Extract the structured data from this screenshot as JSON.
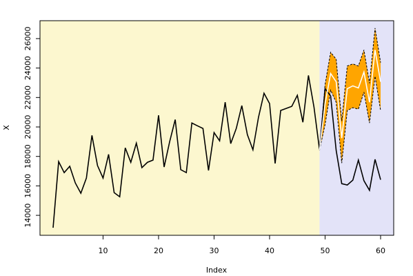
{
  "chart_data": {
    "type": "line",
    "xlabel": "Index",
    "ylabel": "X",
    "xlim": [
      -1.36,
      62.36
    ],
    "ylim": [
      12645,
      27215
    ],
    "xticks": [
      10,
      20,
      30,
      40,
      50,
      60
    ],
    "yticks": [
      14000,
      16000,
      18000,
      20000,
      22000,
      24000,
      26000
    ],
    "split_x": 49,
    "background_colors": [
      "#fcf7cf",
      "#e3e3f8"
    ],
    "series": [
      {
        "color": "#000000",
        "x": [
          1,
          2,
          3,
          4,
          5,
          6,
          7,
          8,
          9,
          10,
          11,
          12,
          13,
          14,
          15,
          16,
          17,
          18,
          19,
          20,
          21,
          22,
          23,
          24,
          25,
          26,
          27,
          28,
          29,
          30,
          31,
          32,
          33,
          34,
          35,
          36,
          37,
          38,
          39,
          40,
          41,
          42,
          43,
          44,
          45,
          46,
          47,
          48,
          49,
          50,
          51,
          52,
          53,
          54,
          55,
          56,
          57,
          58,
          59,
          60
        ],
        "values": [
          13160,
          17650,
          16900,
          17330,
          16200,
          15500,
          16530,
          19430,
          17380,
          16530,
          18140,
          15540,
          15260,
          18580,
          17600,
          18900,
          17240,
          17600,
          17750,
          20790,
          17280,
          19000,
          20500,
          17100,
          16900,
          20270,
          20080,
          19900,
          17050,
          19620,
          19060,
          21680,
          18870,
          19900,
          21450,
          19480,
          18450,
          20650,
          22290,
          21590,
          17520,
          21120,
          21260,
          21400,
          22150,
          20320,
          23500,
          21350,
          18450,
          22600,
          22100,
          18400,
          16150,
          16060,
          16390,
          17750,
          16350,
          15700,
          17800,
          16420
        ]
      }
    ],
    "forecast": {
      "color": "#ffffff",
      "band_color": "#ffa500",
      "x": [
        49,
        50,
        51,
        52,
        53,
        54,
        55,
        56,
        57,
        58,
        59,
        60
      ],
      "values": [
        18450,
        21570,
        23630,
        23070,
        19240,
        22600,
        22790,
        22650,
        23730,
        21680,
        25230,
        23070
      ],
      "upper": [
        18450,
        22880,
        25070,
        24600,
        20400,
        24140,
        24280,
        24140,
        25230,
        22970,
        26710,
        24370
      ],
      "lower": [
        18450,
        20170,
        22500,
        21680,
        17550,
        21120,
        21310,
        21210,
        22360,
        20270,
        23440,
        21120
      ]
    }
  }
}
